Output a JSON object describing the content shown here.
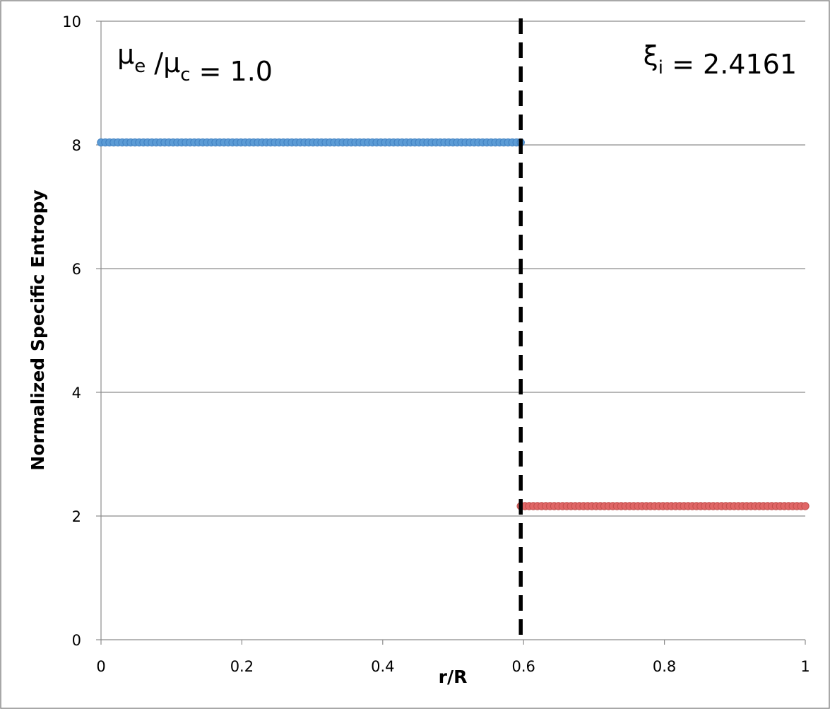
{
  "chart_data": {
    "type": "scatter",
    "title": "",
    "xlabel": "r/R",
    "ylabel": "Normalized Specific Entropy",
    "xlim": [
      0,
      1
    ],
    "ylim": [
      0,
      10
    ],
    "x_ticks": [
      "0",
      "0.2",
      "0.4",
      "0.6",
      "0.8",
      "1"
    ],
    "x_tick_values": [
      0,
      0.2,
      0.4,
      0.6,
      0.8,
      1
    ],
    "y_ticks": [
      "0",
      "2",
      "4",
      "6",
      "8",
      "10"
    ],
    "y_tick_values": [
      0,
      2,
      4,
      6,
      8,
      10
    ],
    "grid": "horizontal",
    "legend": "none",
    "series": [
      {
        "color": "#5b9bd5",
        "edge_color": "#3f7fc0",
        "x_range": [
          0,
          0.596
        ],
        "point_count": 100,
        "y": 8.04
      },
      {
        "color": "#e06666",
        "edge_color": "#c0504d",
        "x_range": [
          0.596,
          1.0
        ],
        "point_count": 69,
        "y": 2.16
      }
    ],
    "vertical_line": {
      "x": 0.596,
      "style": "dashed",
      "color": "#000000"
    },
    "annotations": [
      {
        "id": "mu-ratio",
        "parts": [
          {
            "text": "μ",
            "sub": false
          },
          {
            "text": "e",
            "sub": true
          },
          {
            "text": " /μ",
            "sub": false
          },
          {
            "text": "c",
            "sub": true
          },
          {
            "text": " = 1.0",
            "sub": false
          }
        ]
      },
      {
        "id": "xi",
        "parts": [
          {
            "text": "ξ",
            "sub": false
          },
          {
            "text": "i",
            "sub": true
          },
          {
            "text": " = 2.4161",
            "sub": false
          }
        ]
      }
    ]
  }
}
